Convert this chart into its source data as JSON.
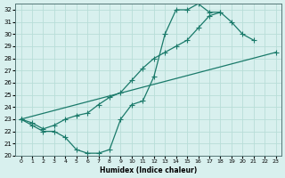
{
  "xlabel": "Humidex (Indice chaleur)",
  "background_color": "#d8f0ee",
  "grid_color": "#b8ddd8",
  "line_color": "#1a7a6a",
  "xlim": [
    -0.5,
    23.5
  ],
  "ylim": [
    20,
    32.5
  ],
  "xticks": [
    0,
    1,
    2,
    3,
    4,
    5,
    6,
    7,
    8,
    9,
    10,
    11,
    12,
    13,
    14,
    15,
    16,
    17,
    18,
    19,
    20,
    21,
    22,
    23
  ],
  "yticks": [
    20,
    21,
    22,
    23,
    24,
    25,
    26,
    27,
    28,
    29,
    30,
    31,
    32
  ],
  "curve1_x": [
    0,
    1,
    2,
    3,
    4,
    5,
    6,
    7,
    8,
    9,
    10,
    11,
    12,
    13,
    14,
    15,
    16,
    17,
    18,
    19,
    20,
    21
  ],
  "curve1_y": [
    23.0,
    22.5,
    22.0,
    22.0,
    21.5,
    20.5,
    20.2,
    20.2,
    20.5,
    23.0,
    24.2,
    24.5,
    26.5,
    30.0,
    32.0,
    32.0,
    32.5,
    31.8,
    31.8,
    31.0,
    30.0,
    29.5
  ],
  "curve2_x": [
    0,
    1,
    2,
    3,
    4,
    5,
    6,
    7,
    8,
    9,
    10,
    11,
    12,
    13,
    14,
    15,
    16,
    17,
    18
  ],
  "curve2_y": [
    23.0,
    22.7,
    22.2,
    22.5,
    23.0,
    23.3,
    23.5,
    24.2,
    24.8,
    25.2,
    26.2,
    27.2,
    28.0,
    28.5,
    29.0,
    29.5,
    30.5,
    31.5,
    31.8
  ],
  "curve3_x": [
    0,
    23
  ],
  "curve3_y": [
    23.0,
    28.5
  ]
}
